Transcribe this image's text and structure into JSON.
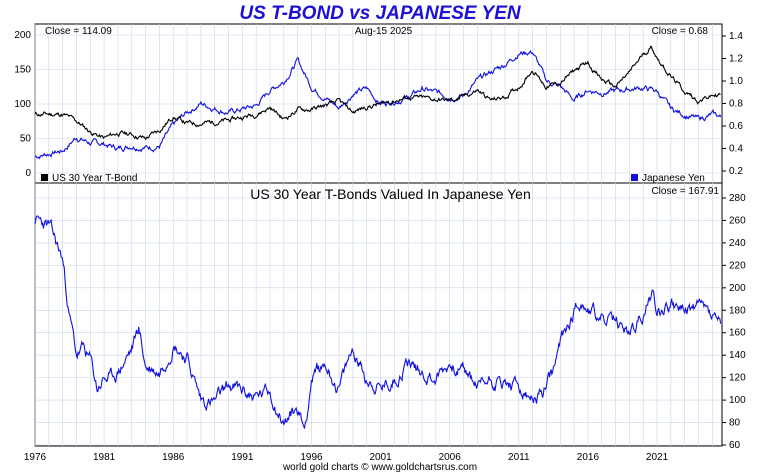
{
  "title": "US T-BOND vs JAPANESE YEN",
  "footer": "world gold charts © www.goldchartsrus.com",
  "colors": {
    "tbond": "#000000",
    "yen": "#1010e0",
    "ratio": "#1010e0",
    "grid": "#c8d4ea",
    "title": "#1a10d8"
  },
  "chart_data": [
    {
      "type": "line",
      "panel": "top",
      "date_label": "Aug-15  2025",
      "left_annotation": "Close = 114.09",
      "right_annotation": "Close = 0.68",
      "x_ticks": [
        "1976",
        "1981",
        "1986",
        "1991",
        "1996",
        "2001",
        "2006",
        "2011",
        "2016",
        "2021"
      ],
      "y_left_ticks": [
        "0",
        "50",
        "100",
        "150",
        "200"
      ],
      "y_right_ticks": [
        "0.2",
        "0.4",
        "0.6",
        "0.8",
        "1.0",
        "1.2",
        "1.4"
      ],
      "ylim_left": [
        0,
        200
      ],
      "ylim_right": [
        0.2,
        1.4
      ],
      "xlim": [
        1976,
        2025.7
      ],
      "grid": true,
      "series": [
        {
          "name": "US 30 Year T-Bond",
          "axis": "left",
          "x": [
            1976,
            1978,
            1979,
            1980,
            1981,
            1982,
            1983,
            1984,
            1985,
            1986,
            1987,
            1988,
            1990,
            1992,
            1993,
            1994,
            1995,
            1996,
            1998,
            1999,
            2000,
            2001,
            2003,
            2004,
            2006,
            2007,
            2008,
            2009,
            2010,
            2011,
            2012,
            2013,
            2014,
            2015,
            2016,
            2017,
            2018,
            2019,
            2020,
            2020.6,
            2021,
            2022,
            2023,
            2024,
            2025,
            2025.6
          ],
          "values": [
            85,
            85,
            75,
            60,
            50,
            58,
            56,
            50,
            62,
            82,
            72,
            72,
            76,
            86,
            95,
            78,
            92,
            92,
            103,
            88,
            96,
            100,
            110,
            108,
            105,
            110,
            120,
            105,
            110,
            125,
            150,
            125,
            130,
            148,
            160,
            135,
            125,
            145,
            172,
            183,
            168,
            140,
            118,
            105,
            112,
            114
          ]
        },
        {
          "name": "Japanese Yen",
          "axis": "right",
          "x": [
            1976,
            1978,
            1979,
            1980,
            1981,
            1982,
            1983,
            1984,
            1985,
            1986,
            1987,
            1988,
            1990,
            1992,
            1993,
            1994,
            1995,
            1996,
            1998,
            1999,
            2000,
            2001,
            2003,
            2004,
            2006,
            2007,
            2008,
            2009,
            2010,
            2011,
            2012,
            2013,
            2014,
            2015,
            2016,
            2017,
            2018,
            2019,
            2020,
            2021,
            2022,
            2023,
            2024,
            2025,
            2025.6
          ],
          "values": [
            0.33,
            0.38,
            0.5,
            0.45,
            0.44,
            0.4,
            0.43,
            0.41,
            0.42,
            0.6,
            0.72,
            0.8,
            0.72,
            0.78,
            0.92,
            1.0,
            1.18,
            0.95,
            0.76,
            0.89,
            0.93,
            0.8,
            0.85,
            0.93,
            0.86,
            0.87,
            1.0,
            1.08,
            1.15,
            1.25,
            1.26,
            1.0,
            0.95,
            0.83,
            0.92,
            0.9,
            0.91,
            0.93,
            0.94,
            0.91,
            0.75,
            0.7,
            0.66,
            0.7,
            0.68
          ]
        }
      ]
    },
    {
      "type": "line",
      "panel": "bottom",
      "title": "US 30 Year T-Bonds Valued In Japanese Yen",
      "right_annotation": "Close = 167.91",
      "y_ticks": [
        "60",
        "80",
        "100",
        "120",
        "140",
        "160",
        "180",
        "200",
        "220",
        "240",
        "260",
        "280"
      ],
      "ylim": [
        60,
        280
      ],
      "xlim": [
        1976,
        2025.7
      ],
      "grid": true,
      "series": [
        {
          "name": "",
          "x": [
            1976,
            1977,
            1978,
            1978.5,
            1979,
            1979.5,
            1980,
            1980.5,
            1981,
            1981.5,
            1982,
            1983,
            1983.5,
            1984,
            1985,
            1986,
            1987,
            1988,
            1989,
            1990,
            1991,
            1992,
            1993,
            1994,
            1995,
            1995.5,
            1996,
            1997,
            1998,
            1999,
            2000,
            2001,
            2002,
            2003,
            2004,
            2005,
            2006,
            2007,
            2008,
            2009,
            2010,
            2011,
            2012,
            2013,
            2013.5,
            2014,
            2015,
            2015.5,
            2016,
            2017,
            2018,
            2019,
            2020,
            2020.7,
            2021,
            2022,
            2023,
            2024,
            2025,
            2025.6
          ],
          "values": [
            260,
            255,
            225,
            175,
            140,
            145,
            135,
            110,
            120,
            118,
            125,
            145,
            165,
            130,
            125,
            152,
            138,
            100,
            98,
            112,
            108,
            103,
            108,
            80,
            92,
            75,
            120,
            132,
            110,
            145,
            120,
            110,
            118,
            135,
            125,
            120,
            132,
            127,
            112,
            120,
            115,
            110,
            98,
            110,
            125,
            150,
            180,
            190,
            182,
            172,
            168,
            160,
            175,
            196,
            180,
            187,
            178,
            185,
            175,
            168
          ]
        }
      ]
    }
  ]
}
